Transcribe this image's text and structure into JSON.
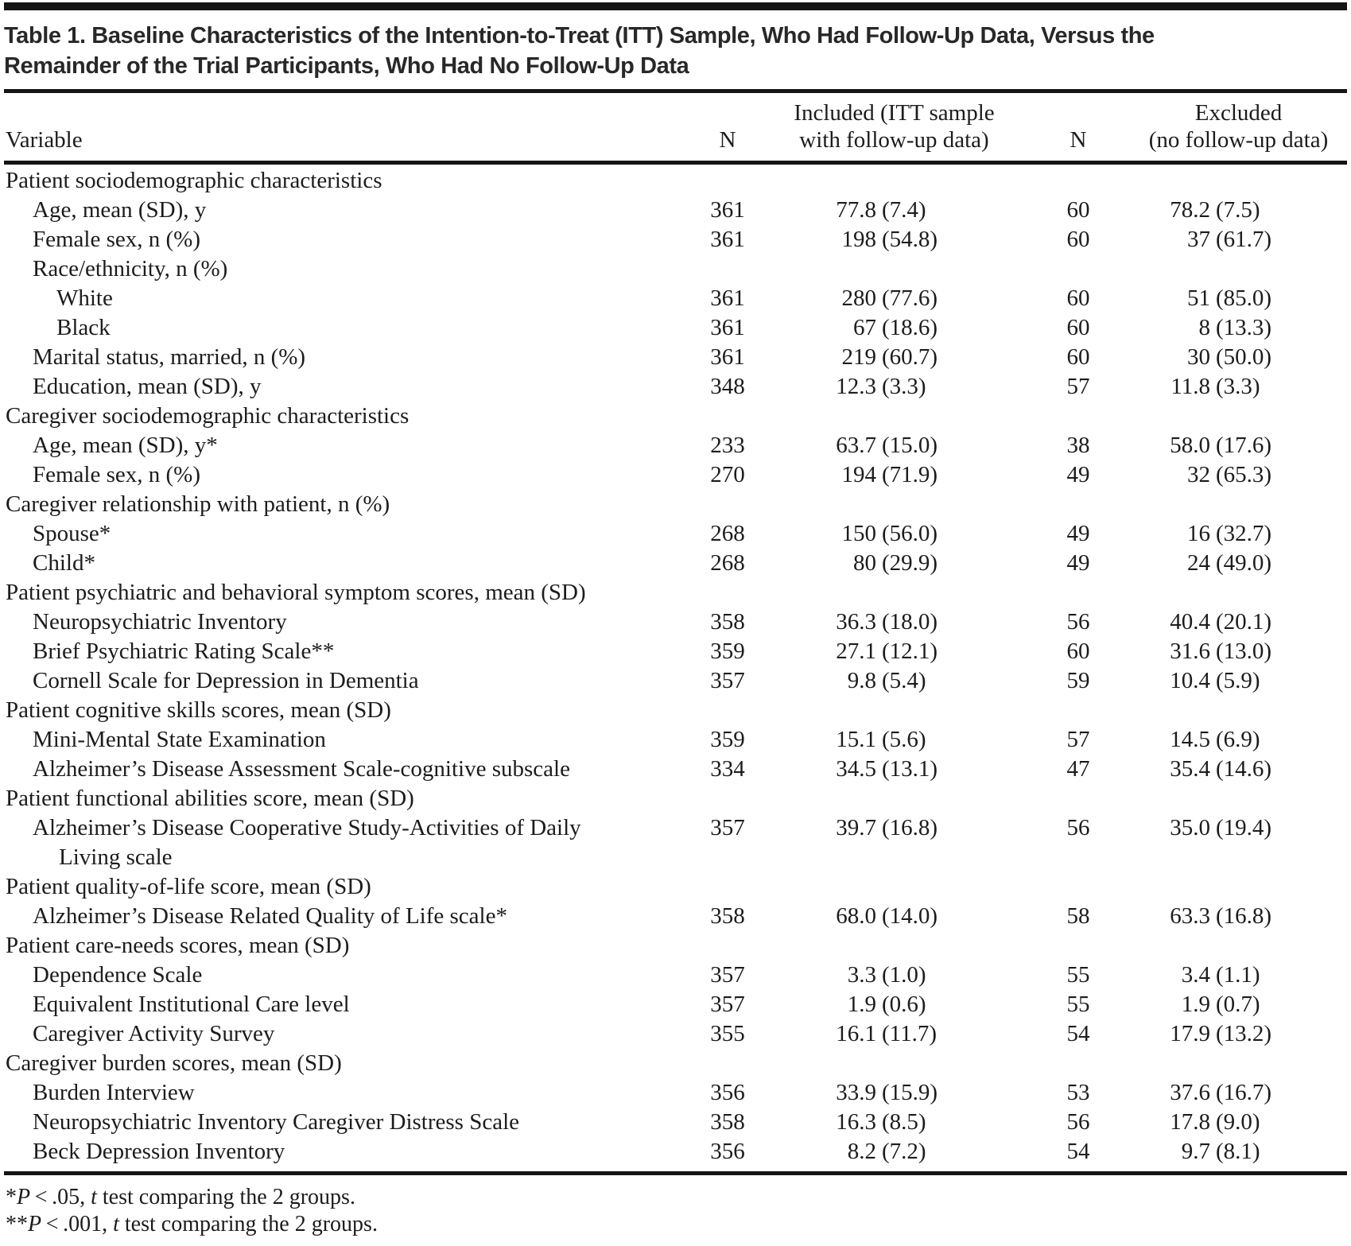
{
  "title_lines": [
    "Table 1. Baseline Characteristics of the Intention-to-Treat (ITT) Sample, Who Had Follow-Up Data, Versus the",
    "Remainder of the Trial Participants, Who Had No Follow-Up Data"
  ],
  "header": {
    "variable": "Variable",
    "n_included": "N",
    "included_lines": [
      "Included (ITT sample",
      "with follow-up data)"
    ],
    "n_excluded": "N",
    "excluded_lines": [
      "Excluded",
      "(no follow-up data)"
    ]
  },
  "table": {
    "rows": [
      {
        "label": "Patient sociodemographic characteristics",
        "indent": 0,
        "n1": "",
        "val1": "",
        "sd1": "",
        "n2": "",
        "val2": "",
        "sd2": ""
      },
      {
        "label": "Age, mean (SD), y",
        "indent": 1,
        "n1": "361",
        "val1": "77.8",
        "sd1": "(7.4)",
        "n2": "60",
        "val2": "78.2",
        "sd2": "(7.5)"
      },
      {
        "label": "Female sex, n (%)",
        "indent": 1,
        "n1": "361",
        "val1": "198",
        "sd1": "(54.8)",
        "n2": "60",
        "val2": "37",
        "sd2": "(61.7)"
      },
      {
        "label": "Race/ethnicity, n (%)",
        "indent": 1,
        "n1": "",
        "val1": "",
        "sd1": "",
        "n2": "",
        "val2": "",
        "sd2": ""
      },
      {
        "label": "White",
        "indent": 2,
        "n1": "361",
        "val1": "280",
        "sd1": "(77.6)",
        "n2": "60",
        "val2": "51",
        "sd2": "(85.0)"
      },
      {
        "label": "Black",
        "indent": 2,
        "n1": "361",
        "val1": "67",
        "sd1": "(18.6)",
        "n2": "60",
        "val2": "8",
        "sd2": "(13.3)"
      },
      {
        "label": "Marital status, married, n (%)",
        "indent": 1,
        "n1": "361",
        "val1": "219",
        "sd1": "(60.7)",
        "n2": "60",
        "val2": "30",
        "sd2": "(50.0)"
      },
      {
        "label": "Education, mean (SD), y",
        "indent": 1,
        "n1": "348",
        "val1": "12.3",
        "sd1": "(3.3)",
        "n2": "57",
        "val2": "11.8",
        "sd2": "(3.3)"
      },
      {
        "label": "Caregiver sociodemographic characteristics",
        "indent": 0,
        "n1": "",
        "val1": "",
        "sd1": "",
        "n2": "",
        "val2": "",
        "sd2": ""
      },
      {
        "label": "Age, mean (SD), y*",
        "indent": 1,
        "n1": "233",
        "val1": "63.7",
        "sd1": "(15.0)",
        "n2": "38",
        "val2": "58.0",
        "sd2": "(17.6)"
      },
      {
        "label": "Female sex, n (%)",
        "indent": 1,
        "n1": "270",
        "val1": "194",
        "sd1": "(71.9)",
        "n2": "49",
        "val2": "32",
        "sd2": "(65.3)"
      },
      {
        "label": "Caregiver relationship with patient, n (%)",
        "indent": 0,
        "n1": "",
        "val1": "",
        "sd1": "",
        "n2": "",
        "val2": "",
        "sd2": ""
      },
      {
        "label": "Spouse*",
        "indent": 1,
        "n1": "268",
        "val1": "150",
        "sd1": "(56.0)",
        "n2": "49",
        "val2": "16",
        "sd2": "(32.7)"
      },
      {
        "label": "Child*",
        "indent": 1,
        "n1": "268",
        "val1": "80",
        "sd1": "(29.9)",
        "n2": "49",
        "val2": "24",
        "sd2": "(49.0)"
      },
      {
        "label": "Patient psychiatric and behavioral symptom scores, mean (SD)",
        "indent": 0,
        "n1": "",
        "val1": "",
        "sd1": "",
        "n2": "",
        "val2": "",
        "sd2": ""
      },
      {
        "label": "Neuropsychiatric Inventory",
        "indent": 1,
        "n1": "358",
        "val1": "36.3",
        "sd1": "(18.0)",
        "n2": "56",
        "val2": "40.4",
        "sd2": "(20.1)"
      },
      {
        "label": "Brief Psychiatric Rating Scale**",
        "indent": 1,
        "n1": "359",
        "val1": "27.1",
        "sd1": "(12.1)",
        "n2": "60",
        "val2": "31.6",
        "sd2": "(13.0)"
      },
      {
        "label": "Cornell Scale for Depression in Dementia",
        "indent": 1,
        "n1": "357",
        "val1": "9.8",
        "sd1": "(5.4)",
        "n2": "59",
        "val2": "10.4",
        "sd2": "(5.9)"
      },
      {
        "label": "Patient cognitive skills scores, mean (SD)",
        "indent": 0,
        "n1": "",
        "val1": "",
        "sd1": "",
        "n2": "",
        "val2": "",
        "sd2": ""
      },
      {
        "label": "Mini-Mental State Examination",
        "indent": 1,
        "n1": "359",
        "val1": "15.1",
        "sd1": "(5.6)",
        "n2": "57",
        "val2": "14.5",
        "sd2": "(6.9)"
      },
      {
        "label": "Alzheimer’s Disease Assessment Scale-cognitive subscale",
        "indent": 1,
        "n1": "334",
        "val1": "34.5",
        "sd1": "(13.1)",
        "n2": "47",
        "val2": "35.4",
        "sd2": "(14.6)"
      },
      {
        "label": "Patient functional abilities score, mean (SD)",
        "indent": 0,
        "n1": "",
        "val1": "",
        "sd1": "",
        "n2": "",
        "val2": "",
        "sd2": ""
      },
      {
        "label": "Alzheimer’s Disease Cooperative Study-Activities of Daily",
        "label2": "Living scale",
        "indent": 1,
        "n1": "357",
        "val1": "39.7",
        "sd1": "(16.8)",
        "n2": "56",
        "val2": "35.0",
        "sd2": "(19.4)"
      },
      {
        "label": "Patient quality-of-life score, mean (SD)",
        "indent": 0,
        "n1": "",
        "val1": "",
        "sd1": "",
        "n2": "",
        "val2": "",
        "sd2": ""
      },
      {
        "label": "Alzheimer’s Disease Related Quality of Life scale*",
        "indent": 1,
        "n1": "358",
        "val1": "68.0",
        "sd1": "(14.0)",
        "n2": "58",
        "val2": "63.3",
        "sd2": "(16.8)"
      },
      {
        "label": "Patient care-needs scores, mean (SD)",
        "indent": 0,
        "n1": "",
        "val1": "",
        "sd1": "",
        "n2": "",
        "val2": "",
        "sd2": ""
      },
      {
        "label": "Dependence Scale",
        "indent": 1,
        "n1": "357",
        "val1": "3.3",
        "sd1": "(1.0)",
        "n2": "55",
        "val2": "3.4",
        "sd2": "(1.1)"
      },
      {
        "label": "Equivalent Institutional Care level",
        "indent": 1,
        "n1": "357",
        "val1": "1.9",
        "sd1": "(0.6)",
        "n2": "55",
        "val2": "1.9",
        "sd2": "(0.7)"
      },
      {
        "label": "Caregiver Activity Survey",
        "indent": 1,
        "n1": "355",
        "val1": "16.1",
        "sd1": "(11.7)",
        "n2": "54",
        "val2": "17.9",
        "sd2": "(13.2)"
      },
      {
        "label": "Caregiver burden scores, mean (SD)",
        "indent": 0,
        "n1": "",
        "val1": "",
        "sd1": "",
        "n2": "",
        "val2": "",
        "sd2": ""
      },
      {
        "label": "Burden Interview",
        "indent": 1,
        "n1": "356",
        "val1": "33.9",
        "sd1": "(15.9)",
        "n2": "53",
        "val2": "37.6",
        "sd2": "(16.7)"
      },
      {
        "label": "Neuropsychiatric Inventory Caregiver Distress Scale",
        "indent": 1,
        "n1": "358",
        "val1": "16.3",
        "sd1": "(8.5)",
        "n2": "56",
        "val2": "17.8",
        "sd2": "(9.0)"
      },
      {
        "label": "Beck Depression Inventory",
        "indent": 1,
        "n1": "356",
        "val1": "8.2",
        "sd1": "(7.2)",
        "n2": "54",
        "val2": "9.7",
        "sd2": "(8.1)"
      }
    ]
  },
  "footnotes": [
    {
      "marker": "*",
      "p": "P",
      "threshold": " < .05, ",
      "t": "t",
      "rest": " test comparing the 2 groups."
    },
    {
      "marker": "**",
      "p": "P",
      "threshold": " < .001, ",
      "t": "t",
      "rest": " test comparing the 2 groups."
    }
  ],
  "colors": {
    "text": "#1c1c1c",
    "title_text": "#282828",
    "rule": "#151515",
    "background": "#ffffff"
  }
}
